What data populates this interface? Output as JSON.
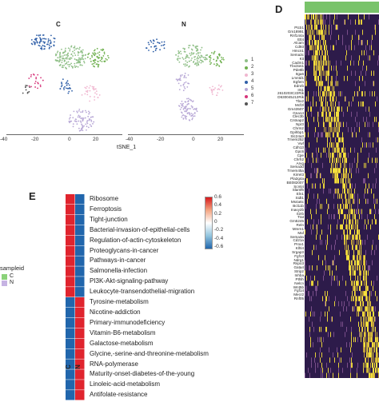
{
  "panels": {
    "d_letter": "D",
    "e_letter": "E"
  },
  "tsne": {
    "left_title": "C",
    "right_title": "N",
    "xlabel": "tSNE_1",
    "x_ticks_left": [
      "-40",
      "-20",
      "0",
      "20"
    ],
    "x_ticks_right": [
      "-40",
      "-20",
      "0",
      "20"
    ],
    "clusters": [
      {
        "label": "1",
        "color": "#8fbf87"
      },
      {
        "label": "2",
        "color": "#6fb04f"
      },
      {
        "label": "3",
        "color": "#f0b7d0"
      },
      {
        "label": "4",
        "color": "#2f5fa8"
      },
      {
        "label": "5",
        "color": "#b8a8d6"
      },
      {
        "label": "6",
        "color": "#d6357a"
      },
      {
        "label": "7",
        "color": "#555555"
      }
    ]
  },
  "heatmap": {
    "top_bar_colors": [
      "#79c36a",
      "#79c36a"
    ],
    "genes": [
      "Ptcb1",
      "Gm18991",
      "Rnf144a",
      "Etl4",
      "Alcam",
      "Cd93",
      "Hmcn1",
      "Sema3c",
      "Kit",
      "Cadm1",
      "Tbx3os1",
      "Pde8b",
      "Itga6",
      "Lmntd1",
      "Egfem",
      "Ednrb",
      "Irs1",
      "2610203C22Rik",
      "D630045J12Rik",
      "Tbx2",
      "Mcf2l",
      "Gm43507",
      "Gna14",
      "Clec3b",
      "Cntnap2",
      "Npr3",
      "Chrm2",
      "Gpihbp1",
      "Slc24a3",
      "Tmem252",
      "Vwf",
      "Cdh13",
      "Gpc6",
      "Cpe",
      "Chrh2",
      "Arvg",
      "Sema3d",
      "Tmem45a",
      "Kirrel3",
      "Pla2g4a",
      "BE082007",
      "Scml4",
      "Slamf6",
      "Eln1",
      "Sidt1",
      "Ms4a6c",
      "Bcl11b",
      "Inavy2b",
      "Il2rb",
      "Trat",
      "Gm5245",
      "Reln",
      "Mmrn1",
      "Maf",
      "Sema3a",
      "Cd21a",
      "Prox1",
      "Klhl4",
      "Srgap3",
      "Fgf13",
      "Ndrg1",
      "Rspo3",
      "Gata4",
      "Strip2",
      "Inhba",
      "Pthlh",
      "Nelcn",
      "Wnt5b",
      "Fgf14",
      "Mecr2",
      "Rnf05"
    ]
  },
  "enrichment": {
    "col_labels": [
      "C",
      "N"
    ],
    "pathways": [
      "Ribosome",
      "Ferroptosis",
      "Tight-junction",
      "Bacterial-invasion-of-epithelial-cells",
      "Regulation-of-actin-cytoskeleton",
      "Proteoglycans-in-cancer",
      "Pathways-in-cancer",
      "Salmonella-infection",
      "PI3K-Akt-signaling-pathway",
      "Leukocyte-transendothelial-migration",
      "Tyrosine-metabolism",
      "Nicotine-addiction",
      "Primary-immunodeficiency",
      "Vitamin-B6-metabolism",
      "Galactose-metabolism",
      "Glycine,-serine-and-threonine-metabolism",
      "RNA-polymerase",
      "Maturity-onset-diabetes-of-the-young",
      "Linoleic-acid-metabolism",
      "Antifolate-resistance"
    ],
    "values_C": [
      0.6,
      0.6,
      0.6,
      0.6,
      0.6,
      0.6,
      0.6,
      0.6,
      0.6,
      0.6,
      -0.6,
      -0.6,
      -0.6,
      -0.6,
      -0.6,
      -0.6,
      -0.6,
      -0.6,
      -0.6,
      -0.6
    ],
    "values_N": [
      -0.6,
      -0.6,
      -0.6,
      -0.6,
      -0.6,
      -0.6,
      -0.6,
      -0.6,
      -0.6,
      -0.6,
      0.6,
      0.6,
      0.6,
      0.6,
      0.6,
      0.6,
      0.6,
      0.6,
      0.6,
      0.6
    ],
    "colorbar_ticks": [
      "0.6",
      "0.4",
      "0.2",
      "0",
      "-0.2",
      "-0.4",
      "-0.6"
    ],
    "sample_legend_title": "sampleid",
    "sample_legend": [
      {
        "label": "C",
        "color": "#8bd27a"
      },
      {
        "label": "N",
        "color": "#c6b3e3"
      }
    ],
    "colors": {
      "high": "#e0242e",
      "low": "#2166ac",
      "mid": "#ffffff"
    }
  }
}
